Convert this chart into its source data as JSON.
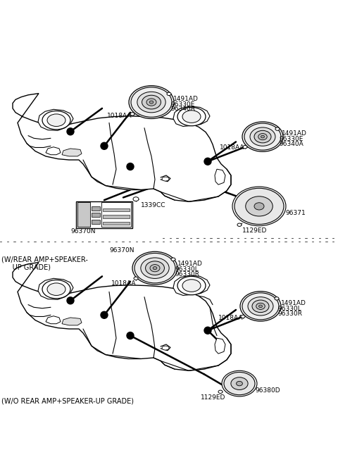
{
  "background_color": "#ffffff",
  "fig_width": 4.8,
  "fig_height": 6.56,
  "dpi": 100,
  "text_color": "#000000",
  "line_color": "#000000",
  "font_size_small": 6.5,
  "font_size_grade": 7.0,
  "annotations": {
    "wo_grade": "(W/O REAR AMP+SPEAKER-UP GRADE)",
    "w_grade": "(W/REAR AMP+SPEAKER-\n     UP GRADE)",
    "part_1129ED_1": "1129ED",
    "part_96380D": "96380D",
    "part_1018AA_r": "1018AA",
    "part_1018AA_l": "1018AA",
    "part_96330R_1": "96330R",
    "part_96330L_1": "96330L",
    "part_1491AD_1": "1491AD",
    "part_96330R_2": "96330R",
    "part_96330L_2": "96330L",
    "part_1491AD_2": "1491AD",
    "part_96370N": "96370N",
    "part_1339CC": "1339CC",
    "part_1129ED_2": "1129ED",
    "part_96371": "96371",
    "part_1018AA_3": "1018AA",
    "part_1018AA_4": "1018AA",
    "part_96340A_1": "96340A",
    "part_96330E_1": "96330E",
    "part_1491AD_3": "1491AD",
    "part_96340A_2": "96340A",
    "part_96330E_2": "96330E",
    "part_1491AD_4": "1491AD"
  }
}
